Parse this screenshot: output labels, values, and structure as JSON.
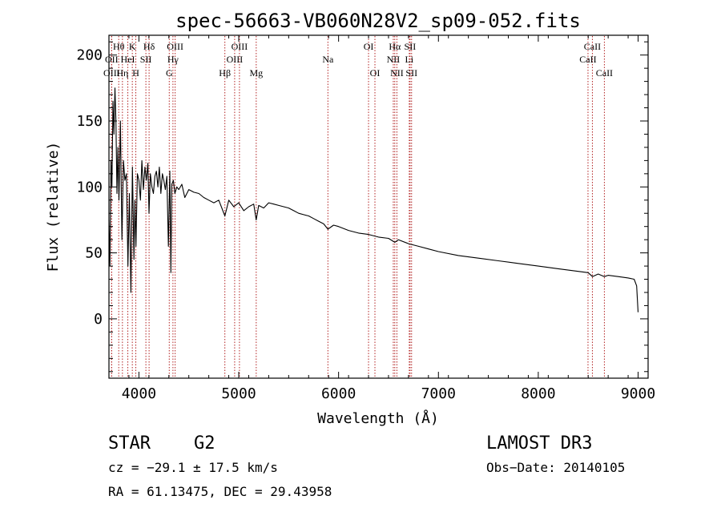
{
  "chart_data": {
    "type": "line",
    "title": "spec-56663-VB060N28V2_sp09-052.fits",
    "xlabel": "Wavelength (Å)",
    "ylabel": "Flux (relative)",
    "xlim": [
      3700,
      9100
    ],
    "ylim": [
      -45,
      215
    ],
    "xticks": [
      4000,
      5000,
      6000,
      7000,
      8000,
      9000
    ],
    "yticks": [
      0,
      50,
      100,
      150,
      200
    ],
    "series": [
      {
        "name": "spectrum",
        "x": [
          3700,
          3710,
          3720,
          3730,
          3740,
          3750,
          3760,
          3770,
          3780,
          3790,
          3800,
          3815,
          3830,
          3845,
          3860,
          3875,
          3890,
          3905,
          3920,
          3935,
          3950,
          3960,
          3970,
          3985,
          4000,
          4015,
          4030,
          4045,
          4060,
          4075,
          4090,
          4101,
          4115,
          4130,
          4145,
          4160,
          4175,
          4190,
          4205,
          4220,
          4235,
          4250,
          4265,
          4280,
          4295,
          4310,
          4320,
          4330,
          4345,
          4360,
          4380,
          4400,
          4430,
          4460,
          4500,
          4550,
          4600,
          4650,
          4700,
          4750,
          4800,
          4861,
          4900,
          4950,
          5000,
          5050,
          5100,
          5150,
          5175,
          5200,
          5250,
          5300,
          5350,
          5400,
          5450,
          5500,
          5550,
          5600,
          5650,
          5700,
          5750,
          5800,
          5850,
          5893,
          5950,
          6000,
          6100,
          6200,
          6300,
          6400,
          6500,
          6563,
          6600,
          6700,
          6800,
          6900,
          7000,
          7200,
          7400,
          7600,
          7800,
          8000,
          8200,
          8400,
          8500,
          8542,
          8600,
          8662,
          8700,
          8800,
          8900,
          8960,
          8985,
          9000
        ],
        "values": [
          75,
          40,
          120,
          100,
          165,
          140,
          175,
          150,
          95,
          130,
          90,
          150,
          60,
          120,
          105,
          110,
          40,
          95,
          20,
          115,
          45,
          90,
          55,
          110,
          105,
          90,
          120,
          98,
          115,
          105,
          118,
          80,
          110,
          100,
          95,
          108,
          112,
          100,
          115,
          95,
          110,
          105,
          98,
          108,
          55,
          112,
          35,
          102,
          105,
          95,
          100,
          98,
          102,
          92,
          98,
          96,
          95,
          92,
          90,
          88,
          90,
          78,
          90,
          85,
          88,
          82,
          85,
          87,
          75,
          86,
          84,
          88,
          87,
          86,
          85,
          84,
          82,
          80,
          79,
          78,
          76,
          74,
          72,
          68,
          71,
          70,
          67,
          65,
          64,
          62,
          61,
          58,
          60,
          57,
          55,
          53,
          51,
          48,
          46,
          44,
          42,
          40,
          38,
          36,
          35,
          32,
          34,
          32,
          33,
          32,
          31,
          30,
          25,
          5
        ]
      }
    ],
    "spectral_lines": [
      {
        "label": "Hθ",
        "wavelength": 3798,
        "row": 1
      },
      {
        "label": "OII",
        "wavelength": 3727,
        "row": 2
      },
      {
        "label": "OIII",
        "wavelength": 3727,
        "row": 3
      },
      {
        "label": "K",
        "wavelength": 3934,
        "row": 1
      },
      {
        "label": "HeI",
        "wavelength": 3889,
        "row": 2
      },
      {
        "label": "Hη",
        "wavelength": 3835,
        "row": 3
      },
      {
        "label": "SII",
        "wavelength": 4070,
        "row": 2
      },
      {
        "label": "H",
        "wavelength": 3969,
        "row": 3
      },
      {
        "label": "Hδ",
        "wavelength": 4102,
        "row": 1
      },
      {
        "label": "OIII",
        "wavelength": 4363,
        "row": 1
      },
      {
        "label": "Hγ",
        "wavelength": 4341,
        "row": 2
      },
      {
        "label": "G",
        "wavelength": 4304,
        "row": 3
      },
      {
        "label": "OIII",
        "wavelength": 5007,
        "row": 1
      },
      {
        "label": "OIII",
        "wavelength": 4959,
        "row": 2
      },
      {
        "label": "Hβ",
        "wavelength": 4861,
        "row": 3
      },
      {
        "label": "Mg",
        "wavelength": 5175,
        "row": 3
      },
      {
        "label": "Na",
        "wavelength": 5893,
        "row": 2
      },
      {
        "label": "OI",
        "wavelength": 6300,
        "row": 1
      },
      {
        "label": "OI",
        "wavelength": 6364,
        "row": 3
      },
      {
        "label": "Hα",
        "wavelength": 6563,
        "row": 1
      },
      {
        "label": "SII",
        "wavelength": 6716,
        "row": 1
      },
      {
        "label": "NII",
        "wavelength": 6548,
        "row": 2
      },
      {
        "label": "Li",
        "wavelength": 6708,
        "row": 2
      },
      {
        "label": "NII",
        "wavelength": 6584,
        "row": 3
      },
      {
        "label": "SII",
        "wavelength": 6731,
        "row": 3
      },
      {
        "label": "CaII",
        "wavelength": 8542,
        "row": 1
      },
      {
        "label": "CaII",
        "wavelength": 8498,
        "row": 2
      },
      {
        "label": "CaII",
        "wavelength": 8662,
        "row": 3
      }
    ],
    "line_color": "#b22222"
  },
  "info": {
    "object_class": "STAR",
    "subclass": "G2",
    "survey": "LAMOST DR3",
    "cz": "cz = −29.1 ± 17.5 km/s",
    "obs_date": "Obs−Date: 20140105",
    "coords": "RA =  61.13475, DEC =  29.43958"
  }
}
